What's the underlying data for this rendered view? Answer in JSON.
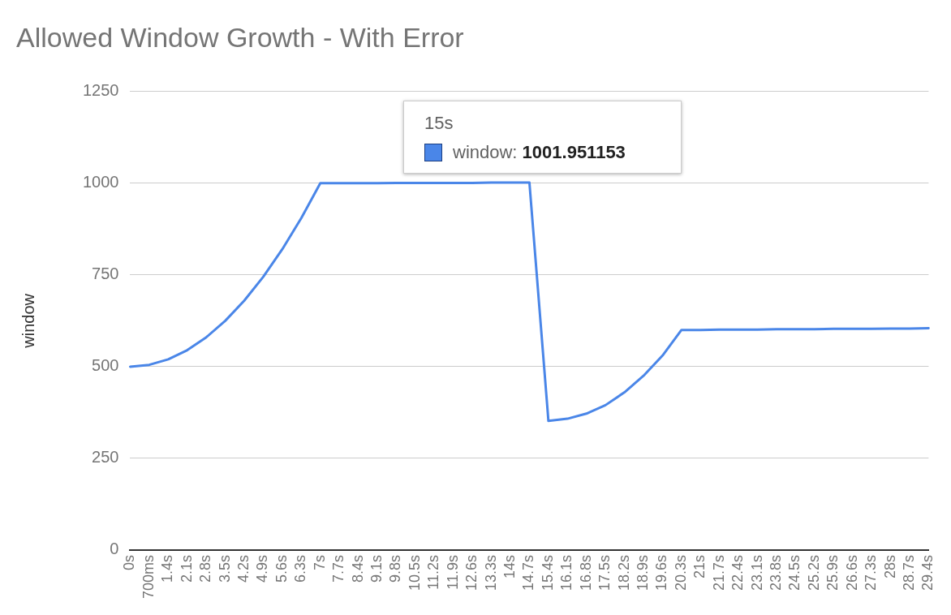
{
  "chart_data": {
    "type": "line",
    "title": "Allowed Window Growth - With Error",
    "ylabel": "window",
    "categories": [
      "0s",
      "700ms",
      "1.4s",
      "2.1s",
      "2.8s",
      "3.5s",
      "4.2s",
      "4.9s",
      "5.6s",
      "6.3s",
      "7s",
      "7.7s",
      "8.4s",
      "9.1s",
      "9.8s",
      "10.5s",
      "11.2s",
      "11.9s",
      "12.6s",
      "13.3s",
      "14s",
      "14.7s",
      "15.4s",
      "16.1s",
      "16.8s",
      "17.5s",
      "18.2s",
      "18.9s",
      "19.6s",
      "20.3s",
      "21s",
      "21.7s",
      "22.4s",
      "23.1s",
      "23.8s",
      "24.5s",
      "25.2s",
      "25.9s",
      "26.6s",
      "27.3s",
      "28s",
      "28.7s",
      "29.4s"
    ],
    "series": [
      {
        "color": "#4a86e8",
        "values": [
          500,
          505,
          520,
          545,
          580,
          625,
          680,
          745,
          820,
          905,
          1000,
          1000,
          1000,
          1000,
          1001,
          1001,
          1001,
          1001,
          1001,
          1002,
          1002,
          1002,
          352,
          358,
          372,
          395,
          430,
          475,
          530,
          600,
          600,
          601,
          601,
          601,
          602,
          602,
          602,
          603,
          603,
          603,
          604,
          604,
          605
        ]
      }
    ],
    "ylim": [
      0,
      1250
    ],
    "yticks": [
      0,
      250,
      500,
      750,
      1000,
      1250
    ],
    "grid": "y",
    "legend": false,
    "marker": "none",
    "line_style": "solid",
    "annotations": [
      "15s",
      "window: 1001.951153"
    ]
  }
}
